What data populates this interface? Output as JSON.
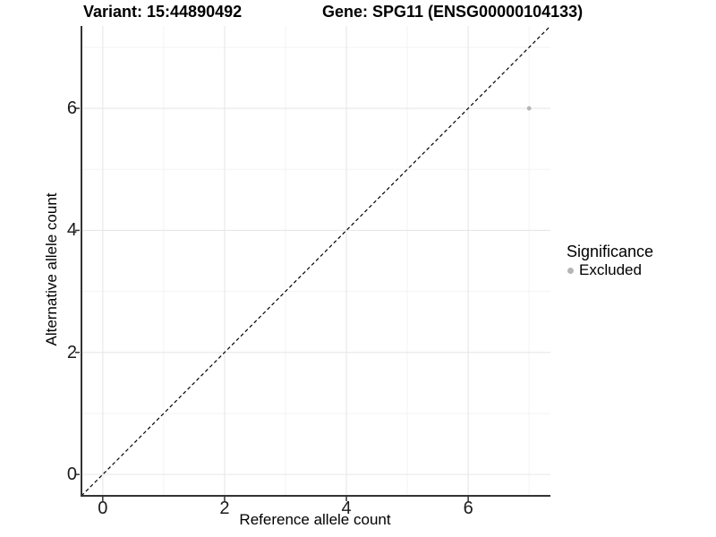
{
  "titles": {
    "variant": "Variant: 15:44890492",
    "gene": "Gene: SPG11 (ENSG00000104133)"
  },
  "x_axis": {
    "label": "Reference allele count"
  },
  "y_axis": {
    "label": "Alternative allele count"
  },
  "legend": {
    "title": "Significance",
    "items": [
      {
        "label": "Excluded",
        "color": "#b5b5b5"
      }
    ]
  },
  "colors": {
    "grid_major": "#e7e7e7",
    "grid_minor": "#f3f3f3",
    "axis_line": "#333333",
    "tick_mark": "#333333",
    "identity_line": "#000000",
    "point": "#b5b5b5"
  },
  "chart_data": {
    "type": "scatter",
    "title": "Variant: 15:44890492    Gene: SPG11 (ENSG00000104133)",
    "xlabel": "Reference allele count",
    "ylabel": "Alternative allele count",
    "xlim": [
      -0.35,
      7.35
    ],
    "ylim": [
      -0.35,
      7.35
    ],
    "major_ticks": [
      0,
      2,
      4,
      6
    ],
    "minor_ticks": [
      1,
      3,
      5,
      7
    ],
    "grid": true,
    "legend_position": "right",
    "series": [
      {
        "name": "Excluded",
        "color": "#b5b5b5",
        "points": [
          {
            "x": 7,
            "y": 6
          }
        ]
      }
    ],
    "reference_line": {
      "type": "identity",
      "style": "dashed",
      "from": [
        -0.35,
        -0.35
      ],
      "to": [
        7.35,
        7.35
      ]
    }
  }
}
